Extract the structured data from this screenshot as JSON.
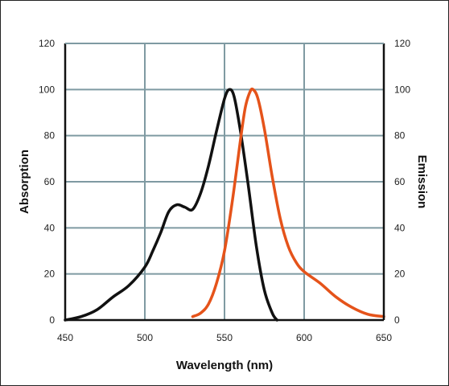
{
  "chart_data": {
    "type": "line",
    "title": "",
    "xlabel": "Wavelength (nm)",
    "ylabel": "Absorption",
    "y2label": "Emission",
    "xlim": [
      450,
      650
    ],
    "ylim": [
      0,
      120
    ],
    "y2lim": [
      0,
      120
    ],
    "x_ticks": [
      450,
      500,
      550,
      600,
      650
    ],
    "y_ticks": [
      0,
      20,
      40,
      60,
      80,
      100,
      120
    ],
    "y2_ticks": [
      0,
      20,
      40,
      60,
      80,
      100,
      120
    ],
    "grid": true,
    "legend": "none",
    "series": [
      {
        "axis": "left",
        "color": "#111111",
        "x": [
          450,
          460,
          470,
          480,
          490,
          500,
          505,
          510,
          515,
          520,
          525,
          530,
          535,
          540,
          545,
          550,
          553,
          556,
          560,
          565,
          570,
          575,
          580,
          583
        ],
        "y": [
          0,
          1.5,
          4.5,
          10,
          15,
          23,
          30,
          38,
          47,
          50,
          49,
          48,
          55,
          67,
          82,
          96,
          100,
          97,
          82,
          58,
          32,
          13,
          3,
          0
        ]
      },
      {
        "axis": "right",
        "color": "#e5531a",
        "x": [
          530,
          535,
          540,
          545,
          550,
          555,
          560,
          563,
          566,
          568,
          571,
          575,
          580,
          585,
          590,
          595,
          600,
          610,
          620,
          630,
          640,
          650
        ],
        "y": [
          1.5,
          3,
          7,
          16,
          30,
          52,
          78,
          92,
          99,
          100,
          96,
          83,
          62,
          44,
          32,
          25,
          21,
          16,
          10,
          5.5,
          2.5,
          1.5
        ]
      }
    ]
  }
}
